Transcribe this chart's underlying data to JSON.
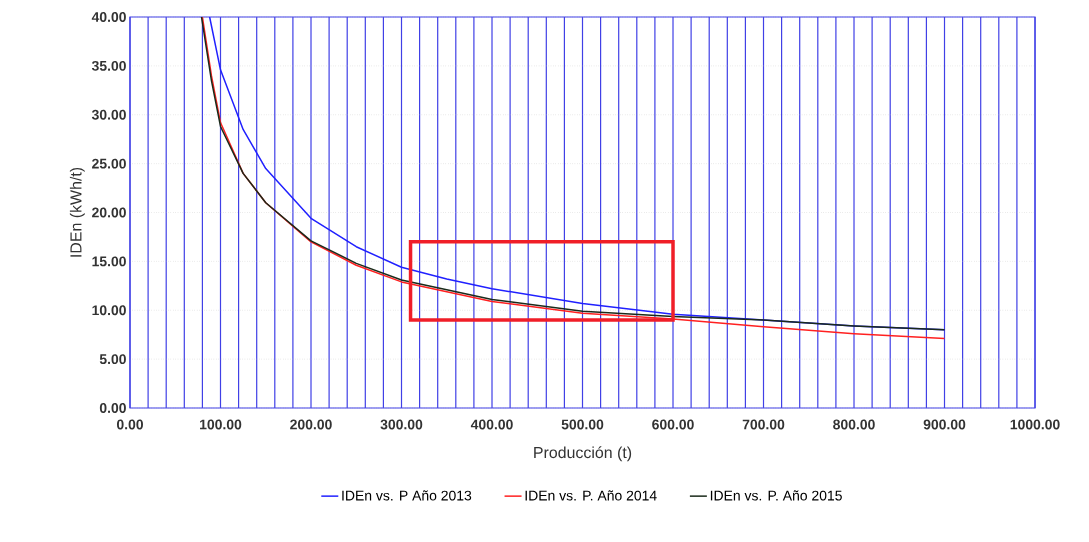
{
  "chart_data": {
    "type": "line",
    "xlabel": "Producción (t)",
    "ylabel": "IDEn (kWh/t)",
    "xlim": [
      0,
      1000
    ],
    "ylim": [
      0,
      40
    ],
    "xticks": [
      {
        "value": 0,
        "label": "0.00"
      },
      {
        "value": 20,
        "label": null
      },
      {
        "value": 40,
        "label": null
      },
      {
        "value": 60,
        "label": null
      },
      {
        "value": 80,
        "label": null
      },
      {
        "value": 100,
        "label": "100.00"
      },
      {
        "value": 120,
        "label": null
      },
      {
        "value": 140,
        "label": null
      },
      {
        "value": 160,
        "label": null
      },
      {
        "value": 180,
        "label": null
      },
      {
        "value": 200,
        "label": "200.00"
      },
      {
        "value": 220,
        "label": null
      },
      {
        "value": 240,
        "label": null
      },
      {
        "value": 260,
        "label": null
      },
      {
        "value": 280,
        "label": null
      },
      {
        "value": 300,
        "label": "300.00"
      },
      {
        "value": 320,
        "label": null
      },
      {
        "value": 340,
        "label": null
      },
      {
        "value": 360,
        "label": null
      },
      {
        "value": 380,
        "label": null
      },
      {
        "value": 400,
        "label": "400.00"
      },
      {
        "value": 420,
        "label": null
      },
      {
        "value": 440,
        "label": null
      },
      {
        "value": 460,
        "label": null
      },
      {
        "value": 480,
        "label": null
      },
      {
        "value": 500,
        "label": "500.00"
      },
      {
        "value": 520,
        "label": null
      },
      {
        "value": 540,
        "label": null
      },
      {
        "value": 560,
        "label": null
      },
      {
        "value": 580,
        "label": null
      },
      {
        "value": 600,
        "label": "600.00"
      },
      {
        "value": 620,
        "label": null
      },
      {
        "value": 640,
        "label": null
      },
      {
        "value": 660,
        "label": null
      },
      {
        "value": 680,
        "label": null
      },
      {
        "value": 700,
        "label": "700.00"
      },
      {
        "value": 720,
        "label": null
      },
      {
        "value": 740,
        "label": null
      },
      {
        "value": 760,
        "label": null
      },
      {
        "value": 780,
        "label": null
      },
      {
        "value": 800,
        "label": "800.00"
      },
      {
        "value": 820,
        "label": null
      },
      {
        "value": 840,
        "label": null
      },
      {
        "value": 860,
        "label": null
      },
      {
        "value": 880,
        "label": null
      },
      {
        "value": 900,
        "label": "900.00"
      },
      {
        "value": 920,
        "label": null
      },
      {
        "value": 940,
        "label": null
      },
      {
        "value": 960,
        "label": null
      },
      {
        "value": 980,
        "label": null
      },
      {
        "value": 1000,
        "label": "1000.00"
      }
    ],
    "yticks": [
      {
        "value": 0,
        "label": "0.00"
      },
      {
        "value": 5,
        "label": "5.00"
      },
      {
        "value": 10,
        "label": "10.00"
      },
      {
        "value": 15,
        "label": "15.00"
      },
      {
        "value": 20,
        "label": "20.00"
      },
      {
        "value": 25,
        "label": "25.00"
      },
      {
        "value": 30,
        "label": "30.00"
      },
      {
        "value": 35,
        "label": "35.00"
      },
      {
        "value": 40,
        "label": "40.00"
      }
    ],
    "grid": true,
    "legend": "bottom",
    "series": [
      {
        "name": "IDEn vs. P Año 2013",
        "color": "#2020ff",
        "x": [
          88,
          100,
          125,
          150,
          200,
          250,
          300,
          350,
          400,
          500,
          600,
          700,
          800,
          900
        ],
        "values": [
          40,
          34.6,
          28.5,
          24.5,
          19.4,
          16.5,
          14.4,
          13.2,
          12.2,
          10.7,
          9.6,
          9.0,
          8.4,
          8.0
        ]
      },
      {
        "name": "IDEn vs. P. Año 2014",
        "color": "#ff2020",
        "x": [
          80,
          90,
          100,
          125,
          150,
          200,
          250,
          300,
          400,
          500,
          600,
          700,
          800,
          900
        ],
        "values": [
          40,
          34,
          29.2,
          24,
          21,
          17.0,
          14.6,
          12.9,
          10.9,
          9.7,
          9.1,
          8.3,
          7.6,
          7.1
        ]
      },
      {
        "name": "IDEn vs. P. Año 2015",
        "color": "#1a2a1a",
        "x": [
          79,
          90,
          100,
          125,
          150,
          200,
          250,
          300,
          400,
          500,
          600,
          700,
          800,
          900
        ],
        "values": [
          40,
          33.5,
          28.8,
          24,
          21,
          17.1,
          14.8,
          13.1,
          11.1,
          9.9,
          9.35,
          9.0,
          8.4,
          8.0
        ]
      }
    ]
  }
}
